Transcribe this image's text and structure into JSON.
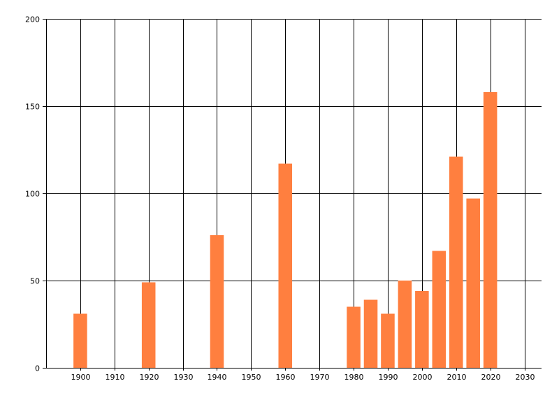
{
  "chart_data": {
    "type": "bar",
    "title": "",
    "xlabel": "",
    "ylabel": "",
    "x": [
      1900,
      1920,
      1940,
      1960,
      1980,
      1985,
      1990,
      1995,
      2000,
      2005,
      2010,
      2015,
      2020
    ],
    "values": [
      31,
      49,
      76,
      117,
      35,
      39,
      31,
      50,
      44,
      67,
      121,
      97,
      158
    ],
    "xlim": [
      1890,
      2035
    ],
    "ylim": [
      0,
      200
    ],
    "xticks": [
      1900,
      1910,
      1920,
      1930,
      1940,
      1950,
      1960,
      1970,
      1980,
      1990,
      2000,
      2010,
      2020,
      2030
    ],
    "yticks": [
      0,
      50,
      100,
      150,
      200
    ],
    "bar_color": "#FF7F3F",
    "grid": true,
    "legend": "none"
  }
}
